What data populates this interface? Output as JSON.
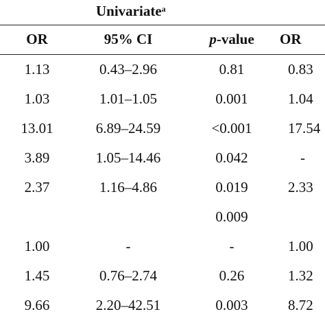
{
  "table": {
    "group_title": "Univariate",
    "group_title_sup": "a",
    "headers": {
      "or": "OR",
      "ci_prefix": "95% CI",
      "p_italic": "p",
      "p_suffix": "-value",
      "or2": "OR"
    },
    "rows": [
      {
        "or": "1.13",
        "ci": "0.43–2.96",
        "p": "0.81",
        "or2": "0.83"
      },
      {
        "or": "1.03",
        "ci": "1.01–1.05",
        "p": "0.001",
        "or2": "1.04"
      },
      {
        "or": "13.01",
        "ci": "6.89–24.59",
        "p": "<0.001",
        "or2": "17.54"
      },
      {
        "or": "3.89",
        "ci": "1.05–14.46",
        "p": "0.042",
        "or2": "-"
      },
      {
        "or": "2.37",
        "ci": "1.16–4.86",
        "p": "0.019",
        "or2": "2.33"
      },
      {
        "or": "",
        "ci": "",
        "p": "0.009",
        "or2": ""
      },
      {
        "or": "1.00",
        "ci": "-",
        "p": "-",
        "or2": "1.00"
      },
      {
        "or": "1.45",
        "ci": "0.76–2.74",
        "p": "0.26",
        "or2": "1.32"
      },
      {
        "or": "9.66",
        "ci": "2.20–42.51",
        "p": "0.003",
        "or2": "8.72"
      }
    ]
  }
}
